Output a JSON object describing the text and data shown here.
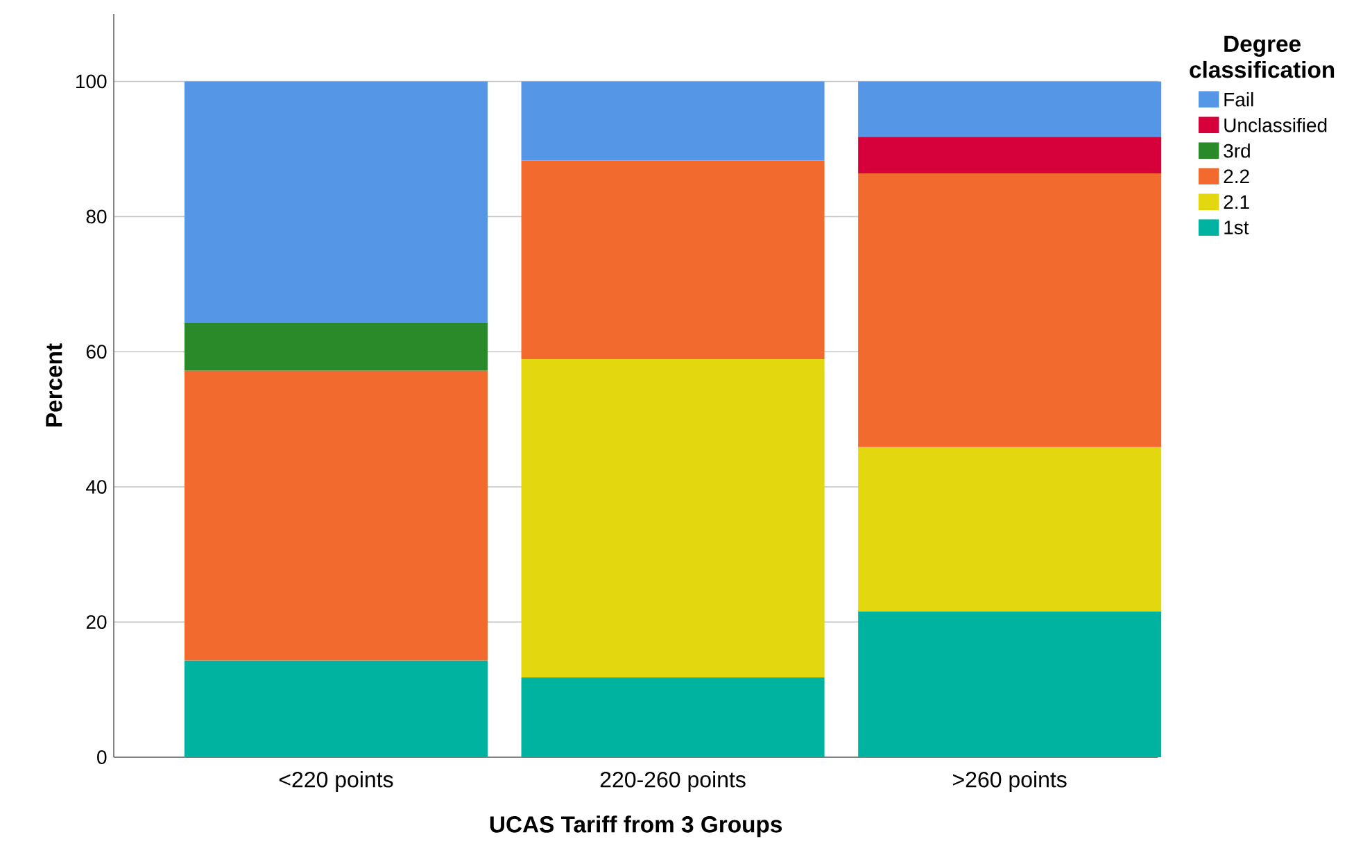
{
  "chart_data": {
    "type": "bar",
    "stacked": true,
    "xlabel": "UCAS Tariff from 3 Groups",
    "ylabel": "Percent",
    "legend_title": "Degree classification",
    "categories": [
      "<220 points",
      "220-260 points",
      ">260 points"
    ],
    "series": [
      {
        "name": "1st",
        "color": "#00b3a0",
        "values": [
          14.3,
          11.8,
          21.6
        ]
      },
      {
        "name": "2.1",
        "color": "#e3d810",
        "values": [
          null,
          47.1,
          24.3
        ]
      },
      {
        "name": "2.2",
        "color": "#f26a2d",
        "values": [
          42.9,
          29.4,
          40.5
        ]
      },
      {
        "name": "3rd",
        "color": "#2a8a2a",
        "values": [
          7.1,
          null,
          null
        ]
      },
      {
        "name": "Unclassified",
        "color": "#d6003a",
        "values": [
          null,
          null,
          5.4
        ]
      },
      {
        "name": "Fail",
        "color": "#5596e6",
        "values": [
          35.7,
          11.7,
          8.2
        ]
      }
    ],
    "ylim": [
      0,
      110
    ],
    "yticks": [
      0,
      20,
      40,
      60,
      80,
      100
    ],
    "grid": "y",
    "legend": "right"
  }
}
